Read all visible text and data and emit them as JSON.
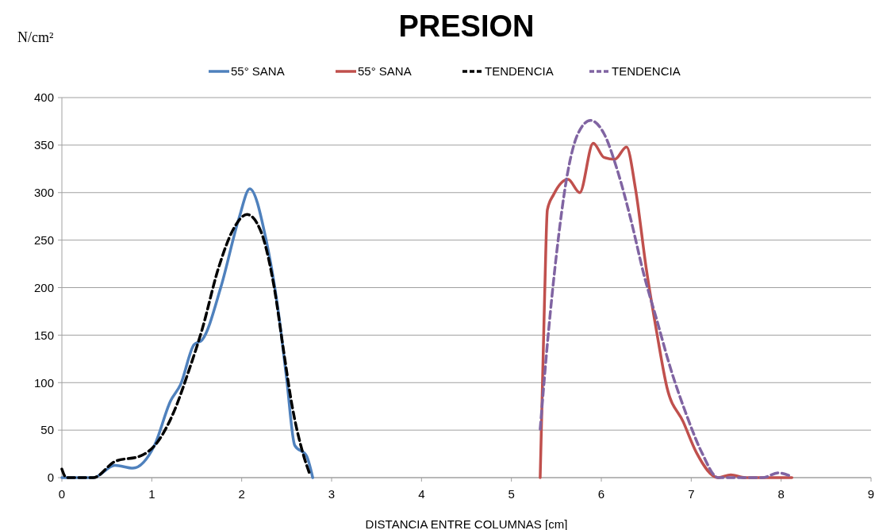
{
  "chart_data": {
    "type": "line",
    "title": "PRESION",
    "xlabel": "DISTANCIA  ENTRE COLUMNAS [cm]",
    "ylabel": "N/cm²",
    "xlim": [
      0,
      9
    ],
    "xticks": [
      0,
      1,
      2,
      3,
      4,
      5,
      6,
      7,
      8,
      9
    ],
    "ylim": [
      0,
      400
    ],
    "yticks": [
      0,
      50,
      100,
      150,
      200,
      250,
      300,
      350,
      400
    ],
    "grid": "y",
    "legend": "top",
    "marker": "none",
    "series": [
      {
        "name": "55° SANA",
        "color": "#4f81bd",
        "line_style": "solid",
        "x": [
          0,
          0.35,
          0.59,
          0.79,
          1.03,
          1.21,
          1.32,
          1.47,
          1.56,
          1.77,
          1.97,
          2.09,
          2.27,
          2.41,
          2.5,
          2.59,
          2.72,
          2.79
        ],
        "values": [
          0,
          0,
          13,
          10,
          34,
          81,
          98,
          140,
          145,
          201,
          273,
          304,
          251,
          173,
          104,
          34,
          23,
          0
        ]
      },
      {
        "name": "55° SANA",
        "color": "#c0504d",
        "line_style": "solid",
        "x": [
          5.32,
          5.37,
          5.4,
          5.47,
          5.63,
          5.76,
          5.91,
          6.03,
          6.15,
          6.28,
          6.38,
          6.5,
          6.62,
          6.73,
          6.91,
          7.06,
          7.3,
          7.44,
          7.6,
          8.12
        ],
        "values": [
          0,
          193,
          282,
          298,
          314,
          300,
          352,
          337,
          335,
          348,
          304,
          220,
          151,
          95,
          59,
          26,
          0,
          3,
          0,
          0
        ]
      },
      {
        "name": "TENDENCIA",
        "color": "#000000",
        "line_style": "dashed",
        "x": [
          0,
          0.05,
          0.35,
          0.59,
          0.88,
          1.06,
          1.24,
          1.41,
          1.56,
          1.74,
          1.91,
          2.06,
          2.21,
          2.36,
          2.47,
          2.56,
          2.68,
          2.76
        ],
        "values": [
          9,
          0,
          0,
          17,
          23,
          37,
          68,
          112,
          156,
          220,
          262,
          277,
          260,
          201,
          131,
          76,
          26,
          3
        ]
      },
      {
        "name": "TENDENCIA",
        "color": "#8064a2",
        "line_style": "dashed",
        "x": [
          5.32,
          5.41,
          5.5,
          5.62,
          5.74,
          5.88,
          6.03,
          6.18,
          6.33,
          6.47,
          6.62,
          6.77,
          6.94,
          7.12,
          7.3,
          7.79,
          7.97,
          8.12
        ],
        "values": [
          51,
          151,
          234,
          318,
          362,
          376,
          362,
          323,
          271,
          215,
          165,
          115,
          68,
          26,
          0,
          0,
          5,
          1
        ]
      }
    ]
  }
}
